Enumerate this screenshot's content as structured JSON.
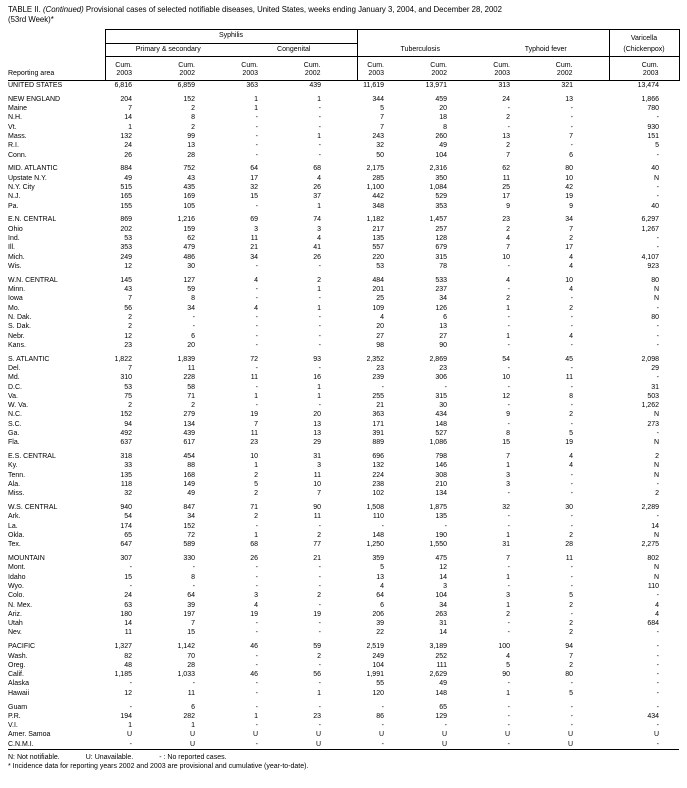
{
  "title": {
    "prefix": "TABLE II.",
    "continued": "(Continued)",
    "rest": "Provisional cases of selected notifiable diseases, United States, weeks ending January 3, 2004, and December 28, 2002",
    "week": "(53rd Week)*"
  },
  "header": {
    "reporting_area": "Reporting area",
    "syphilis": "Syphilis",
    "primary_secondary": "Primary & secondary",
    "congenital": "Congenital",
    "tuberculosis": "Tuberculosis",
    "typhoid": "Typhoid fever",
    "varicella": "Varicella",
    "chickenpox": "(Chickenpox)",
    "cum_label": "Cum.",
    "col_years": [
      "2003",
      "2002",
      "2003",
      "2002",
      "2003",
      "2002",
      "2003",
      "2002",
      "2003"
    ]
  },
  "rows": [
    {
      "area": "UNITED STATES",
      "v": [
        "6,816",
        "6,859",
        "363",
        "439",
        "11,619",
        "13,971",
        "313",
        "321",
        "13,474"
      ]
    },
    {
      "spacer": true
    },
    {
      "area": "NEW ENGLAND",
      "v": [
        "204",
        "152",
        "1",
        "1",
        "344",
        "459",
        "24",
        "13",
        "1,866"
      ]
    },
    {
      "area": "Maine",
      "v": [
        "7",
        "2",
        "1",
        "-",
        "5",
        "20",
        "-",
        "-",
        "780"
      ]
    },
    {
      "area": "N.H.",
      "v": [
        "14",
        "8",
        "-",
        "-",
        "7",
        "18",
        "2",
        "-",
        "-"
      ]
    },
    {
      "area": "Vt.",
      "v": [
        "1",
        "2",
        "-",
        "-",
        "7",
        "8",
        "-",
        "-",
        "930"
      ]
    },
    {
      "area": "Mass.",
      "v": [
        "132",
        "99",
        "-",
        "1",
        "243",
        "260",
        "13",
        "7",
        "151"
      ]
    },
    {
      "area": "R.I.",
      "v": [
        "24",
        "13",
        "-",
        "-",
        "32",
        "49",
        "2",
        "-",
        "5"
      ]
    },
    {
      "area": "Conn.",
      "v": [
        "26",
        "28",
        "-",
        "-",
        "50",
        "104",
        "7",
        "6",
        "-"
      ]
    },
    {
      "spacer": true
    },
    {
      "area": "MID. ATLANTIC",
      "v": [
        "884",
        "752",
        "64",
        "68",
        "2,175",
        "2,316",
        "62",
        "80",
        "40"
      ]
    },
    {
      "area": "Upstate N.Y.",
      "v": [
        "49",
        "43",
        "17",
        "4",
        "285",
        "350",
        "11",
        "10",
        "N"
      ]
    },
    {
      "area": "N.Y. City",
      "v": [
        "515",
        "435",
        "32",
        "26",
        "1,100",
        "1,084",
        "25",
        "42",
        "-"
      ]
    },
    {
      "area": "N.J.",
      "v": [
        "165",
        "169",
        "15",
        "37",
        "442",
        "529",
        "17",
        "19",
        "-"
      ]
    },
    {
      "area": "Pa.",
      "v": [
        "155",
        "105",
        "-",
        "1",
        "348",
        "353",
        "9",
        "9",
        "40"
      ]
    },
    {
      "spacer": true
    },
    {
      "area": "E.N. CENTRAL",
      "v": [
        "869",
        "1,216",
        "69",
        "74",
        "1,182",
        "1,457",
        "23",
        "34",
        "6,297"
      ]
    },
    {
      "area": "Ohio",
      "v": [
        "202",
        "159",
        "3",
        "3",
        "217",
        "257",
        "2",
        "7",
        "1,267"
      ]
    },
    {
      "area": "Ind.",
      "v": [
        "53",
        "62",
        "11",
        "4",
        "135",
        "128",
        "4",
        "2",
        "-"
      ]
    },
    {
      "area": "Ill.",
      "v": [
        "353",
        "479",
        "21",
        "41",
        "557",
        "679",
        "7",
        "17",
        "-"
      ]
    },
    {
      "area": "Mich.",
      "v": [
        "249",
        "486",
        "34",
        "26",
        "220",
        "315",
        "10",
        "4",
        "4,107"
      ]
    },
    {
      "area": "Wis.",
      "v": [
        "12",
        "30",
        "-",
        "-",
        "53",
        "78",
        "-",
        "4",
        "923"
      ]
    },
    {
      "spacer": true
    },
    {
      "area": "W.N. CENTRAL",
      "v": [
        "145",
        "127",
        "4",
        "2",
        "484",
        "533",
        "4",
        "10",
        "80"
      ]
    },
    {
      "area": "Minn.",
      "v": [
        "43",
        "59",
        "-",
        "1",
        "201",
        "237",
        "-",
        "4",
        "N"
      ]
    },
    {
      "area": "Iowa",
      "v": [
        "7",
        "8",
        "-",
        "-",
        "25",
        "34",
        "2",
        "-",
        "N"
      ]
    },
    {
      "area": "Mo.",
      "v": [
        "56",
        "34",
        "4",
        "1",
        "109",
        "126",
        "1",
        "2",
        "-"
      ]
    },
    {
      "area": "N. Dak.",
      "v": [
        "2",
        "-",
        "-",
        "-",
        "4",
        "6",
        "-",
        "-",
        "80"
      ]
    },
    {
      "area": "S. Dak.",
      "v": [
        "2",
        "-",
        "-",
        "-",
        "20",
        "13",
        "-",
        "-",
        "-"
      ]
    },
    {
      "area": "Nebr.",
      "v": [
        "12",
        "6",
        "-",
        "-",
        "27",
        "27",
        "1",
        "4",
        "-"
      ]
    },
    {
      "area": "Kans.",
      "v": [
        "23",
        "20",
        "-",
        "-",
        "98",
        "90",
        "-",
        "-",
        "-"
      ]
    },
    {
      "spacer": true
    },
    {
      "area": "S. ATLANTIC",
      "v": [
        "1,822",
        "1,839",
        "72",
        "93",
        "2,352",
        "2,869",
        "54",
        "45",
        "2,098"
      ]
    },
    {
      "area": "Del.",
      "v": [
        "7",
        "11",
        "-",
        "-",
        "23",
        "23",
        "-",
        "-",
        "29"
      ]
    },
    {
      "area": "Md.",
      "v": [
        "310",
        "228",
        "11",
        "16",
        "239",
        "306",
        "10",
        "11",
        "-"
      ]
    },
    {
      "area": "D.C.",
      "v": [
        "53",
        "58",
        "-",
        "1",
        "-",
        "-",
        "-",
        "-",
        "31"
      ]
    },
    {
      "area": "Va.",
      "v": [
        "75",
        "71",
        "1",
        "1",
        "255",
        "315",
        "12",
        "8",
        "503"
      ]
    },
    {
      "area": "W. Va.",
      "v": [
        "2",
        "2",
        "-",
        "-",
        "21",
        "30",
        "-",
        "-",
        "1,262"
      ]
    },
    {
      "area": "N.C.",
      "v": [
        "152",
        "279",
        "19",
        "20",
        "363",
        "434",
        "9",
        "2",
        "N"
      ]
    },
    {
      "area": "S.C.",
      "v": [
        "94",
        "134",
        "7",
        "13",
        "171",
        "148",
        "-",
        "-",
        "273"
      ]
    },
    {
      "area": "Ga.",
      "v": [
        "492",
        "439",
        "11",
        "13",
        "391",
        "527",
        "8",
        "5",
        "-"
      ]
    },
    {
      "area": "Fla.",
      "v": [
        "637",
        "617",
        "23",
        "29",
        "889",
        "1,086",
        "15",
        "19",
        "N"
      ]
    },
    {
      "spacer": true
    },
    {
      "area": "E.S. CENTRAL",
      "v": [
        "318",
        "454",
        "10",
        "31",
        "696",
        "798",
        "7",
        "4",
        "2"
      ]
    },
    {
      "area": "Ky.",
      "v": [
        "33",
        "88",
        "1",
        "3",
        "132",
        "146",
        "1",
        "4",
        "N"
      ]
    },
    {
      "area": "Tenn.",
      "v": [
        "135",
        "168",
        "2",
        "11",
        "224",
        "308",
        "3",
        "-",
        "N"
      ]
    },
    {
      "area": "Ala.",
      "v": [
        "118",
        "149",
        "5",
        "10",
        "238",
        "210",
        "3",
        "-",
        "-"
      ]
    },
    {
      "area": "Miss.",
      "v": [
        "32",
        "49",
        "2",
        "7",
        "102",
        "134",
        "-",
        "-",
        "2"
      ]
    },
    {
      "spacer": true
    },
    {
      "area": "W.S. CENTRAL",
      "v": [
        "940",
        "847",
        "71",
        "90",
        "1,508",
        "1,875",
        "32",
        "30",
        "2,289"
      ]
    },
    {
      "area": "Ark.",
      "v": [
        "54",
        "34",
        "2",
        "11",
        "110",
        "135",
        "-",
        "-",
        "-"
      ]
    },
    {
      "area": "La.",
      "v": [
        "174",
        "152",
        "-",
        "-",
        "-",
        "-",
        "-",
        "-",
        "14"
      ]
    },
    {
      "area": "Okla.",
      "v": [
        "65",
        "72",
        "1",
        "2",
        "148",
        "190",
        "1",
        "2",
        "N"
      ]
    },
    {
      "area": "Tex.",
      "v": [
        "647",
        "589",
        "68",
        "77",
        "1,250",
        "1,550",
        "31",
        "28",
        "2,275"
      ]
    },
    {
      "spacer": true
    },
    {
      "area": "MOUNTAIN",
      "v": [
        "307",
        "330",
        "26",
        "21",
        "359",
        "475",
        "7",
        "11",
        "802"
      ]
    },
    {
      "area": "Mont.",
      "v": [
        "-",
        "-",
        "-",
        "-",
        "5",
        "12",
        "-",
        "-",
        "N"
      ]
    },
    {
      "area": "Idaho",
      "v": [
        "15",
        "8",
        "-",
        "-",
        "13",
        "14",
        "1",
        "-",
        "N"
      ]
    },
    {
      "area": "Wyo.",
      "v": [
        "-",
        "-",
        "-",
        "-",
        "4",
        "3",
        "-",
        "-",
        "110"
      ]
    },
    {
      "area": "Colo.",
      "v": [
        "24",
        "64",
        "3",
        "2",
        "64",
        "104",
        "3",
        "5",
        "-"
      ]
    },
    {
      "area": "N. Mex.",
      "v": [
        "63",
        "39",
        "4",
        "-",
        "6",
        "34",
        "1",
        "2",
        "4"
      ]
    },
    {
      "area": "Ariz.",
      "v": [
        "180",
        "197",
        "19",
        "19",
        "206",
        "263",
        "2",
        "-",
        "4"
      ]
    },
    {
      "area": "Utah",
      "v": [
        "14",
        "7",
        "-",
        "-",
        "39",
        "31",
        "-",
        "2",
        "684"
      ]
    },
    {
      "area": "Nev.",
      "v": [
        "11",
        "15",
        "-",
        "-",
        "22",
        "14",
        "-",
        "2",
        "-"
      ]
    },
    {
      "spacer": true
    },
    {
      "area": "PACIFIC",
      "v": [
        "1,327",
        "1,142",
        "46",
        "59",
        "2,519",
        "3,189",
        "100",
        "94",
        "-"
      ]
    },
    {
      "area": "Wash.",
      "v": [
        "82",
        "70",
        "-",
        "2",
        "249",
        "252",
        "4",
        "7",
        "-"
      ]
    },
    {
      "area": "Oreg.",
      "v": [
        "48",
        "28",
        "-",
        "-",
        "104",
        "111",
        "5",
        "2",
        "-"
      ]
    },
    {
      "area": "Calif.",
      "v": [
        "1,185",
        "1,033",
        "46",
        "56",
        "1,991",
        "2,629",
        "90",
        "80",
        "-"
      ]
    },
    {
      "area": "Alaska",
      "v": [
        "-",
        "-",
        "-",
        "-",
        "55",
        "49",
        "-",
        "-",
        "-"
      ]
    },
    {
      "area": "Hawaii",
      "v": [
        "12",
        "11",
        "-",
        "1",
        "120",
        "148",
        "1",
        "5",
        "-"
      ]
    },
    {
      "spacer": true
    },
    {
      "area": "Guam",
      "v": [
        "-",
        "6",
        "-",
        "-",
        "-",
        "65",
        "-",
        "-",
        "-"
      ]
    },
    {
      "area": "P.R.",
      "v": [
        "194",
        "282",
        "1",
        "23",
        "86",
        "129",
        "-",
        "-",
        "434"
      ]
    },
    {
      "area": "V.I.",
      "v": [
        "1",
        "1",
        "-",
        "-",
        "-",
        "-",
        "-",
        "-",
        "-"
      ]
    },
    {
      "area": "Amer. Samoa",
      "v": [
        "U",
        "U",
        "U",
        "U",
        "U",
        "U",
        "U",
        "U",
        "U"
      ]
    },
    {
      "area": "C.N.M.I.",
      "v": [
        "-",
        "U",
        "-",
        "U",
        "-",
        "U",
        "-",
        "U",
        "-"
      ]
    }
  ],
  "footnotes": {
    "line1": [
      "N: Not notifiable.",
      "U: Unavailable.",
      "- : No reported cases."
    ],
    "line2": "* Incidence data for reporting years 2002 and 2003 are provisional and cumulative (year-to-date)."
  }
}
